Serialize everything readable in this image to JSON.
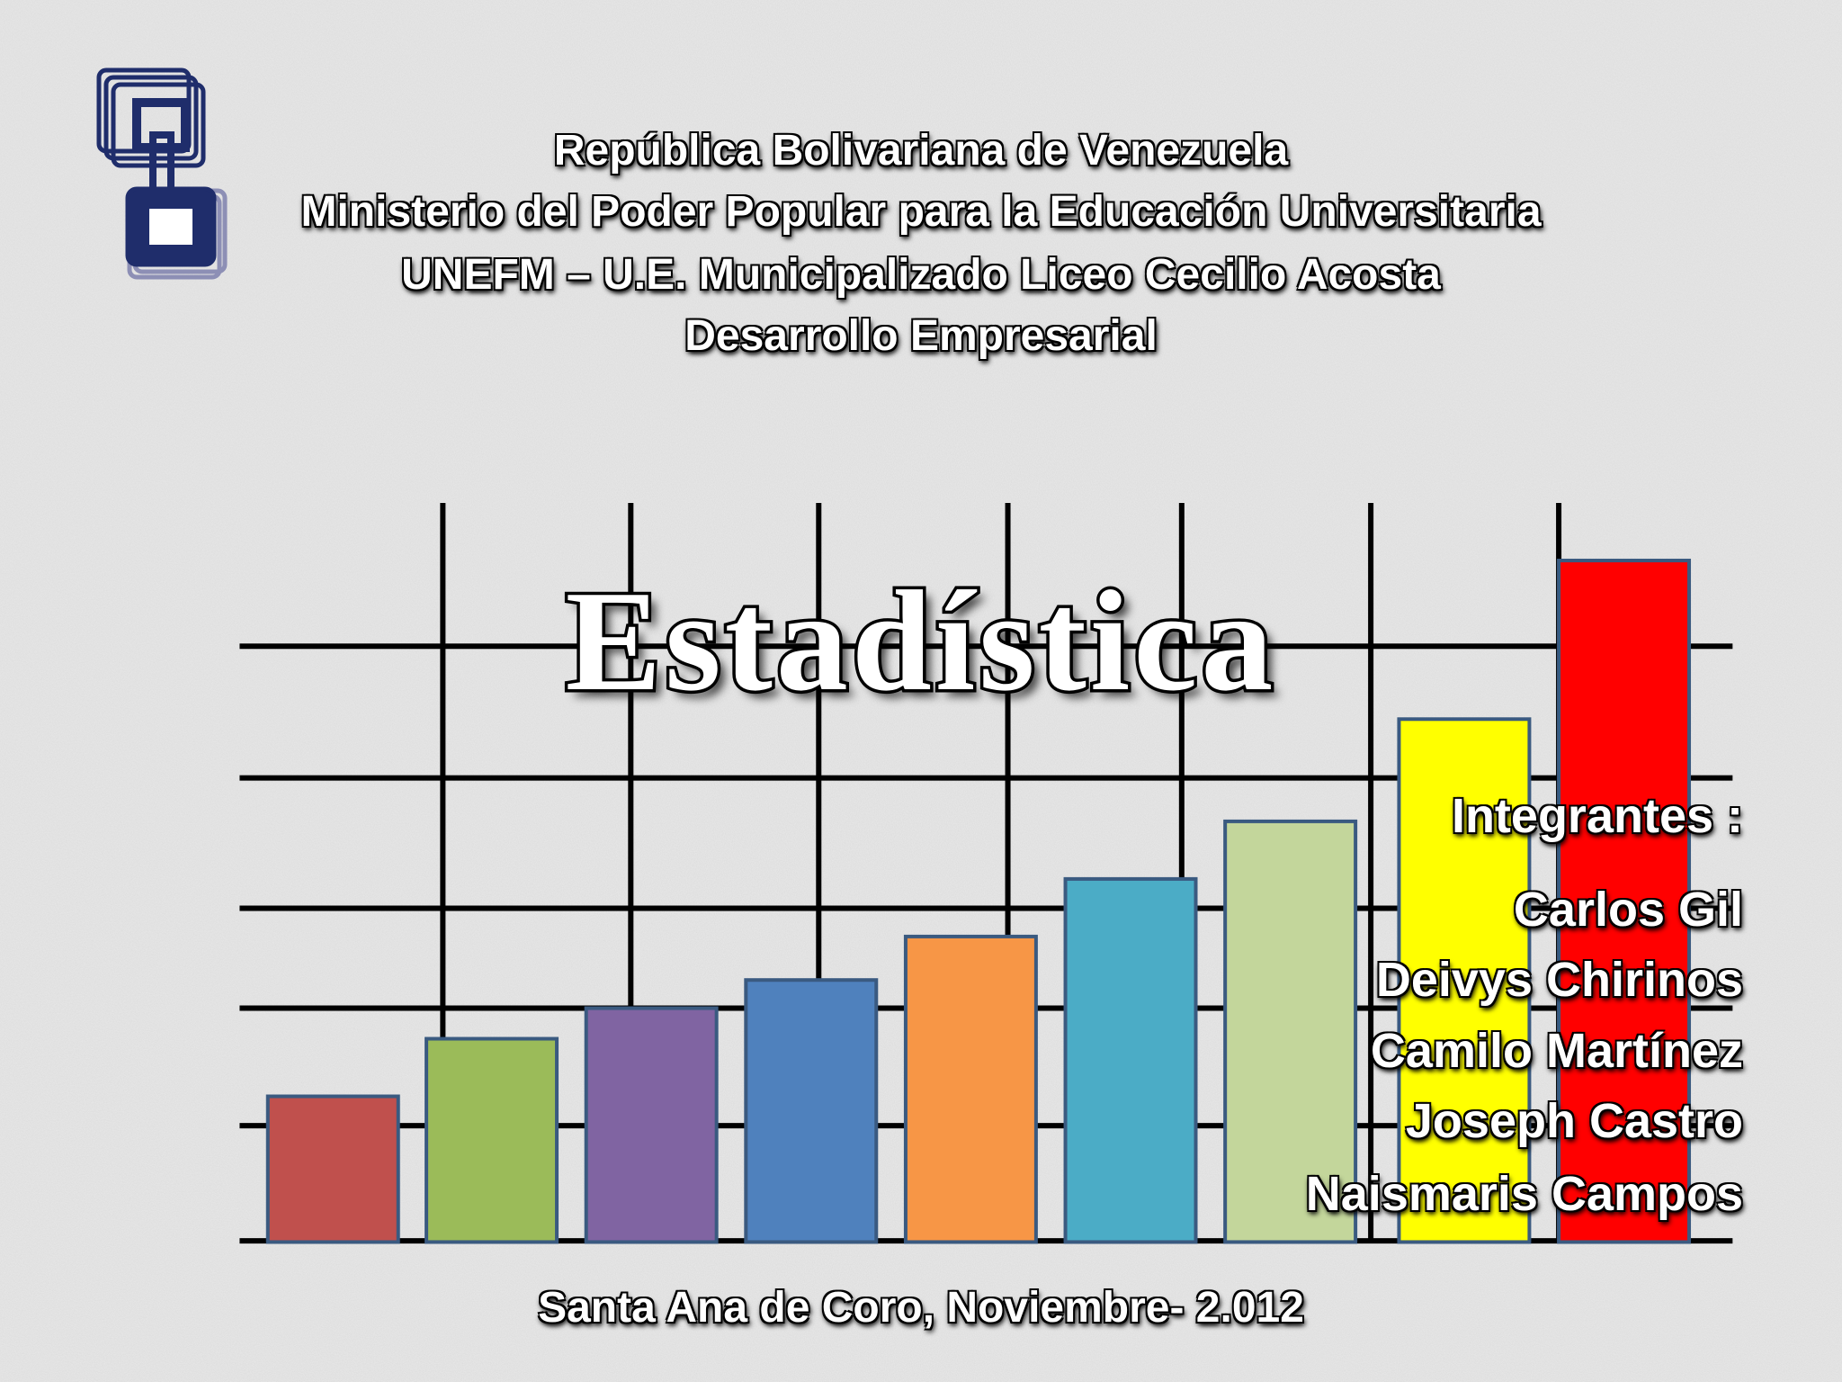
{
  "header": {
    "lines": [
      "República Bolivariana de Venezuela",
      "Ministerio del Poder Popular para la Educación Universitaria",
      "UNEFM – U.E. Municipalizado Liceo Cecilio Acosta",
      "Desarrollo Empresarial"
    ]
  },
  "title": "Estadística",
  "members": {
    "heading": "Integrantes :",
    "names": [
      "Carlos Gil",
      "Deivys Chirinos",
      "Camilo Martínez",
      "Joseph Castro",
      "Naismaris Campos"
    ]
  },
  "footer": "Santa Ana de Coro, Noviembre- 2.012"
}
